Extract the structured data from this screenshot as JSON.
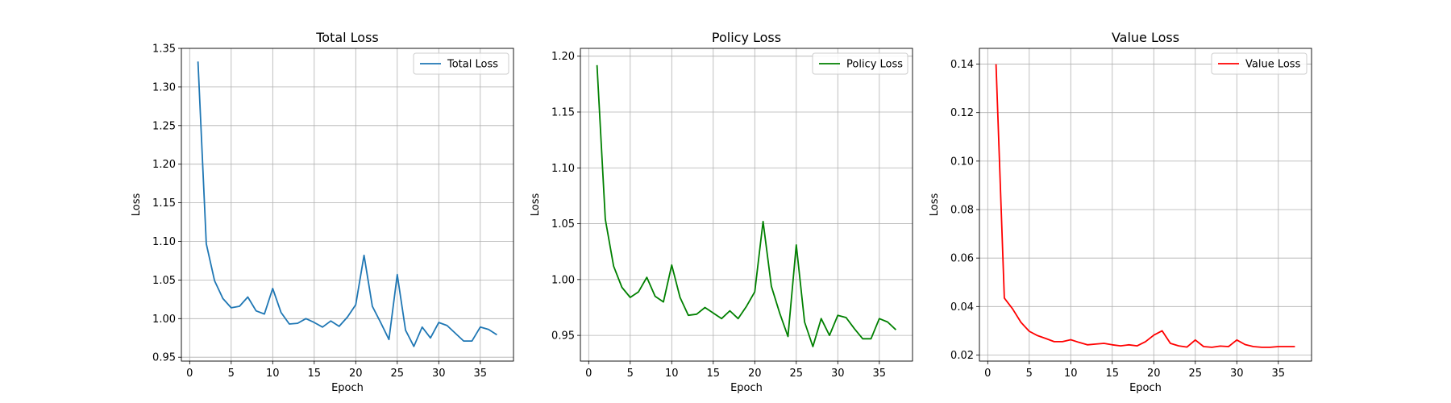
{
  "chart_data": [
    {
      "type": "line",
      "title": "Total Loss",
      "xlabel": "Epoch",
      "ylabel": "Loss",
      "xlim": [
        -1,
        39
      ],
      "ylim": [
        0.945,
        1.35
      ],
      "xticks": [
        0,
        5,
        10,
        15,
        20,
        25,
        30,
        35
      ],
      "yticks": [
        0.95,
        1.0,
        1.05,
        1.1,
        1.15,
        1.2,
        1.25,
        1.3,
        1.35
      ],
      "ytick_labels": [
        "0.95",
        "1.00",
        "1.05",
        "1.10",
        "1.15",
        "1.20",
        "1.25",
        "1.30",
        "1.35"
      ],
      "grid": true,
      "legend": "upper right",
      "series": [
        {
          "name": "Total Loss",
          "color": "#1f77b4",
          "x": [
            1,
            2,
            3,
            4,
            5,
            6,
            7,
            8,
            9,
            10,
            11,
            12,
            13,
            14,
            15,
            16,
            17,
            18,
            19,
            20,
            21,
            22,
            23,
            24,
            25,
            26,
            27,
            28,
            29,
            30,
            31,
            32,
            33,
            34,
            35,
            36,
            37
          ],
          "y": [
            1.333,
            1.097,
            1.049,
            1.026,
            1.014,
            1.016,
            1.028,
            1.01,
            1.006,
            1.039,
            1.008,
            0.993,
            0.994,
            1.0,
            0.995,
            0.989,
            0.997,
            0.99,
            1.002,
            1.018,
            1.082,
            1.016,
            0.995,
            0.973,
            1.057,
            0.985,
            0.964,
            0.989,
            0.975,
            0.995,
            0.991,
            0.981,
            0.971,
            0.971,
            0.989,
            0.986,
            0.979
          ]
        }
      ]
    },
    {
      "type": "line",
      "title": "Policy Loss",
      "xlabel": "Epoch",
      "ylabel": "Loss",
      "xlim": [
        -1,
        39
      ],
      "ylim": [
        0.927,
        1.207
      ],
      "xticks": [
        0,
        5,
        10,
        15,
        20,
        25,
        30,
        35
      ],
      "yticks": [
        0.95,
        1.0,
        1.05,
        1.1,
        1.15,
        1.2
      ],
      "ytick_labels": [
        "0.95",
        "1.00",
        "1.05",
        "1.10",
        "1.15",
        "1.20"
      ],
      "grid": true,
      "legend": "upper right",
      "series": [
        {
          "name": "Policy Loss",
          "color": "#008000",
          "x": [
            1,
            2,
            3,
            4,
            5,
            6,
            7,
            8,
            9,
            10,
            11,
            12,
            13,
            14,
            15,
            16,
            17,
            18,
            19,
            20,
            21,
            22,
            23,
            24,
            25,
            26,
            27,
            28,
            29,
            30,
            31,
            32,
            33,
            34,
            35,
            36,
            37
          ],
          "y": [
            1.192,
            1.054,
            1.012,
            0.993,
            0.984,
            0.989,
            1.002,
            0.985,
            0.98,
            1.013,
            0.984,
            0.968,
            0.969,
            0.975,
            0.97,
            0.965,
            0.972,
            0.965,
            0.976,
            0.989,
            1.052,
            0.994,
            0.97,
            0.949,
            1.031,
            0.962,
            0.94,
            0.965,
            0.95,
            0.968,
            0.966,
            0.956,
            0.947,
            0.947,
            0.965,
            0.962,
            0.955
          ]
        }
      ]
    },
    {
      "type": "line",
      "title": "Value Loss",
      "xlabel": "Epoch",
      "ylabel": "Loss",
      "xlim": [
        -1,
        39
      ],
      "ylim": [
        0.0175,
        0.1465
      ],
      "xticks": [
        0,
        5,
        10,
        15,
        20,
        25,
        30,
        35
      ],
      "yticks": [
        0.02,
        0.04,
        0.06,
        0.08,
        0.1,
        0.12,
        0.14
      ],
      "ytick_labels": [
        "0.02",
        "0.04",
        "0.06",
        "0.08",
        "0.10",
        "0.12",
        "0.14"
      ],
      "grid": true,
      "legend": "upper right",
      "series": [
        {
          "name": "Value Loss",
          "color": "#ff0000",
          "x": [
            1,
            2,
            3,
            4,
            5,
            6,
            7,
            8,
            9,
            10,
            11,
            12,
            13,
            14,
            15,
            16,
            17,
            18,
            19,
            20,
            21,
            22,
            23,
            24,
            25,
            26,
            27,
            28,
            29,
            30,
            31,
            32,
            33,
            34,
            35,
            36,
            37
          ],
          "y": [
            0.14,
            0.0435,
            0.039,
            0.0335,
            0.0298,
            0.028,
            0.0268,
            0.0255,
            0.0255,
            0.0263,
            0.0252,
            0.0242,
            0.0245,
            0.0248,
            0.0242,
            0.0238,
            0.0242,
            0.0238,
            0.0255,
            0.0282,
            0.03,
            0.0248,
            0.0238,
            0.0233,
            0.0262,
            0.0235,
            0.0232,
            0.0237,
            0.0235,
            0.0262,
            0.0243,
            0.0235,
            0.0232,
            0.0232,
            0.0235,
            0.0235,
            0.0235
          ]
        }
      ]
    }
  ]
}
